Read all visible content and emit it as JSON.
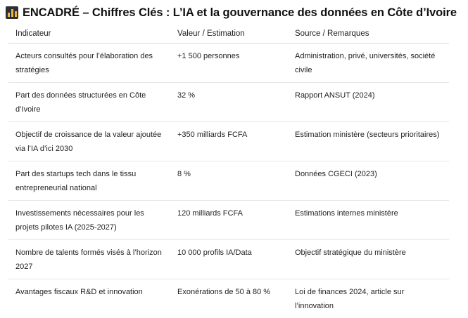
{
  "title": {
    "icon": "bar-chart-icon",
    "text": "ENCADRÉ – Chiffres Clés : L’IA et la gouvernance des données en Côte d’Ivoire"
  },
  "table": {
    "headers": [
      "Indicateur",
      "Valeur / Estimation",
      "Source / Remarques"
    ],
    "rows": [
      [
        "Acteurs consultés pour l’élaboration des stratégies",
        "+1 500 personnes",
        "Administration, privé, universités, société civile"
      ],
      [
        "Part des données structurées en Côte d’Ivoire",
        "32 %",
        "Rapport ANSUT (2024)"
      ],
      [
        "Objectif de croissance de la valeur ajoutée via l’IA d’ici 2030",
        "+350 milliards FCFA",
        "Estimation ministère (secteurs prioritaires)"
      ],
      [
        "Part des startups tech dans le tissu entrepreneurial national",
        "8 %",
        "Données CGECI (2023)"
      ],
      [
        "Investissements nécessaires pour les projets pilotes IA (2025-2027)",
        "120 milliards FCFA",
        "Estimations internes ministère"
      ],
      [
        "Nombre de talents formés visés à l’horizon 2027",
        "10 000 profils IA/Data",
        "Objectif stratégique du ministère"
      ],
      [
        "Avantages fiscaux R&D et innovation",
        "Exonérations de 50 à 80 %",
        "Loi de finances 2024, article sur l’innovation"
      ]
    ]
  }
}
